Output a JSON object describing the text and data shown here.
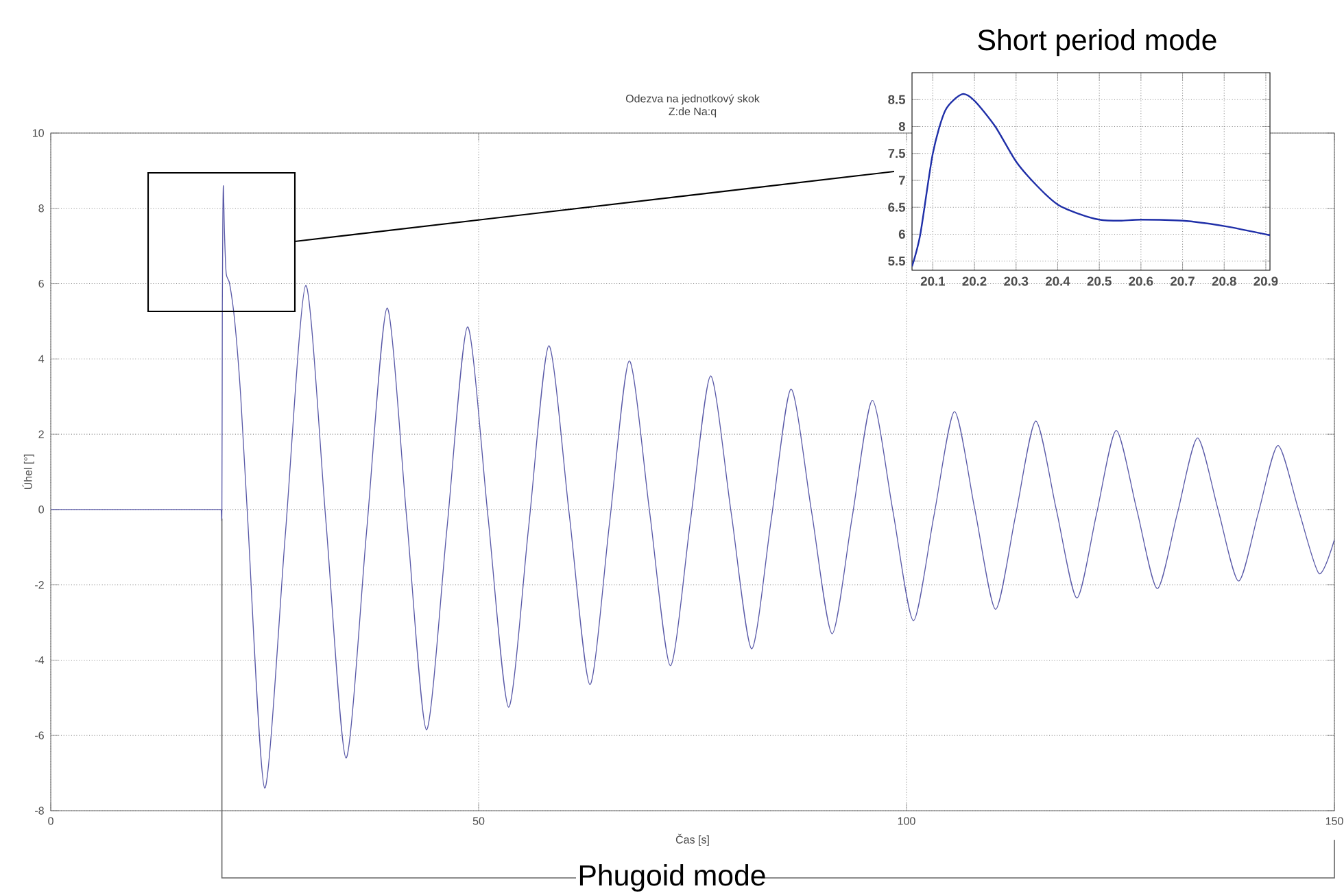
{
  "chart_data": [
    {
      "type": "line",
      "title": "Odezva na jednotkový skok",
      "subtitle": "Z:de Na:q",
      "xlabel": "Čas [s]",
      "ylabel": "Úhel [°]",
      "annotations": [
        {
          "text": "Phugoid mode",
          "x": 20,
          "y": 0
        }
      ],
      "grid": true,
      "xlim": [
        0,
        150
      ],
      "ylim": [
        -8,
        10
      ],
      "xticks": [
        0,
        50,
        100,
        150
      ],
      "yticks": [
        -8,
        -6,
        -4,
        -2,
        0,
        2,
        4,
        6,
        8,
        10
      ],
      "series": [
        {
          "color": "#5a5aa8",
          "x": [
            0,
            10,
            15,
            18,
            19.5,
            19.9,
            20,
            20.05,
            20.1,
            20.17,
            20.3,
            20.5,
            20.9,
            21.5,
            22.2,
            23,
            25,
            27.4,
            29.8,
            32.15,
            34.5,
            36.9,
            39.3,
            41.6,
            43.9,
            46.3,
            48.7,
            51.1,
            53.5,
            55.85,
            58.2,
            60.6,
            63,
            65.3,
            67.6,
            70,
            72.4,
            74.75,
            77.1,
            79.5,
            81.9,
            84.2,
            86.5,
            88.9,
            91.3,
            93.65,
            96,
            98.4,
            100.8,
            103.2,
            105.6,
            108,
            110.4,
            112.75,
            115.1,
            117.5,
            119.9,
            122.2,
            124.5,
            126.9,
            129.3,
            131.65,
            134,
            136.4,
            138.8,
            141.1,
            143.4,
            145.8,
            148.2,
            150
          ],
          "values": [
            0,
            0,
            0,
            0,
            0,
            0,
            0,
            5.4,
            7.5,
            8.6,
            7.35,
            6.27,
            6.0,
            5.0,
            3.0,
            -0.2,
            -7.4,
            -0.7,
            5.95,
            -0.3,
            -6.6,
            -0.6,
            5.35,
            -0.25,
            -5.85,
            -0.5,
            4.85,
            -0.2,
            -5.25,
            -0.45,
            4.35,
            -0.15,
            -4.65,
            -0.35,
            3.95,
            -0.1,
            -4.15,
            -0.3,
            3.55,
            -0.07,
            -3.7,
            -0.25,
            3.2,
            -0.05,
            -3.3,
            -0.2,
            2.9,
            -0.03,
            -2.95,
            -0.17,
            2.6,
            -0.02,
            -2.65,
            -0.15,
            2.35,
            0,
            -2.35,
            -0.12,
            2.1,
            0,
            -2.1,
            -0.1,
            1.9,
            0,
            -1.9,
            -0.1,
            1.7,
            0,
            -1.7,
            -0.8
          ]
        }
      ]
    },
    {
      "type": "line",
      "annotations": [
        "Short period mode"
      ],
      "grid": true,
      "xlim": [
        20.05,
        20.91
      ],
      "ylim": [
        5.33,
        9
      ],
      "xticks": [
        20.1,
        20.2,
        20.3,
        20.4,
        20.5,
        20.6,
        20.7,
        20.8,
        20.9
      ],
      "yticks": [
        5.5,
        6,
        6.5,
        7,
        7.5,
        8,
        8.5
      ],
      "series": [
        {
          "color": "#1f2fa8",
          "x": [
            20.05,
            20.07,
            20.1,
            20.13,
            20.17,
            20.2,
            20.25,
            20.3,
            20.35,
            20.4,
            20.45,
            20.5,
            20.55,
            20.6,
            20.7,
            20.8,
            20.91
          ],
          "values": [
            5.4,
            6.0,
            7.5,
            8.3,
            8.6,
            8.48,
            8.0,
            7.35,
            6.9,
            6.55,
            6.38,
            6.27,
            6.25,
            6.27,
            6.25,
            6.15,
            5.98
          ]
        }
      ]
    }
  ]
}
